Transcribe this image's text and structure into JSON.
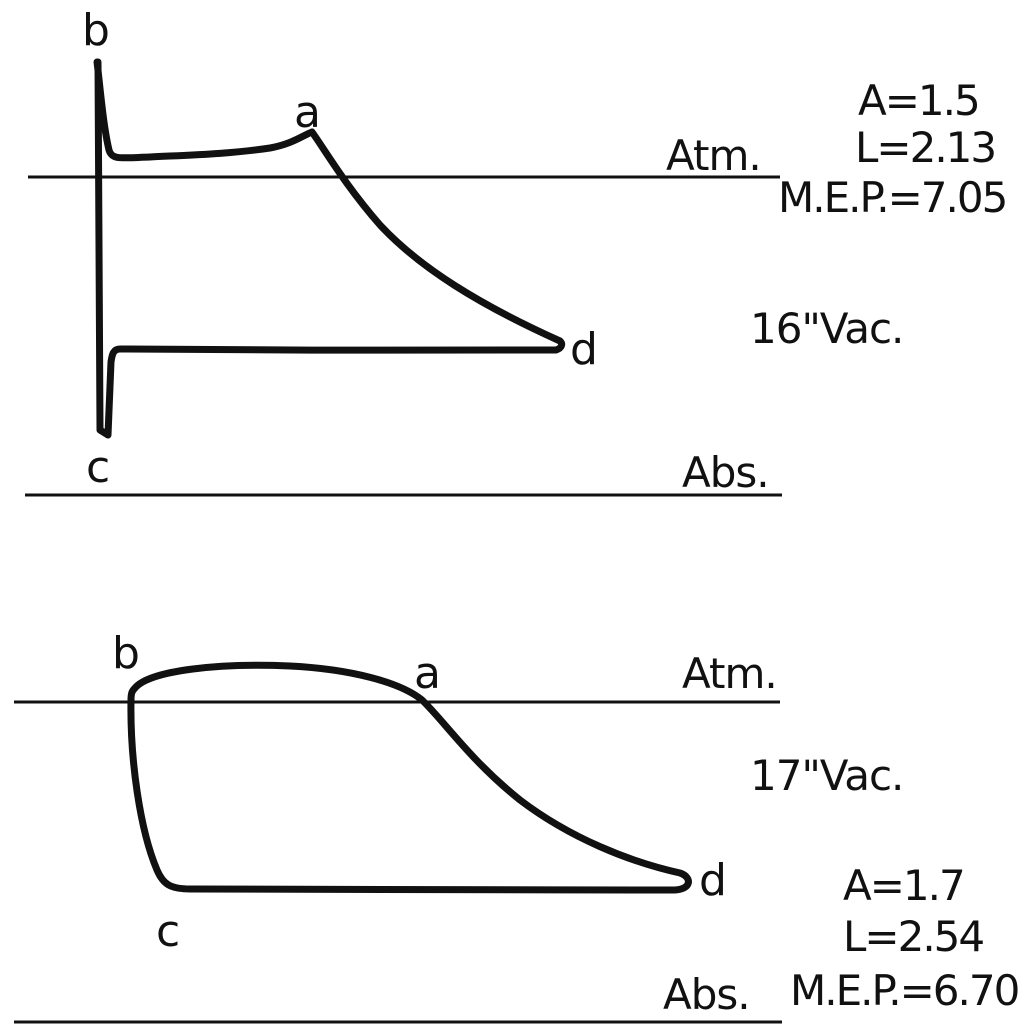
{
  "diagram_top": {
    "points": {
      "a": "a",
      "b": "b",
      "c": "c",
      "d": "d"
    },
    "atm_label": "Atm.",
    "abs_label": "Abs.",
    "vacuum_label": "16\"Vac.",
    "values": {
      "area": "A=1.5",
      "length": "L=2.13",
      "mep": "M.E.P.=7.05"
    }
  },
  "diagram_bottom": {
    "points": {
      "a": "a",
      "b": "b",
      "c": "c",
      "d": "d"
    },
    "atm_label": "Atm.",
    "abs_label": "Abs.",
    "vacuum_label": "17\"Vac.",
    "values": {
      "area": "A=1.7",
      "length": "L=2.54",
      "mep": "M.E.P.=6.70"
    }
  }
}
